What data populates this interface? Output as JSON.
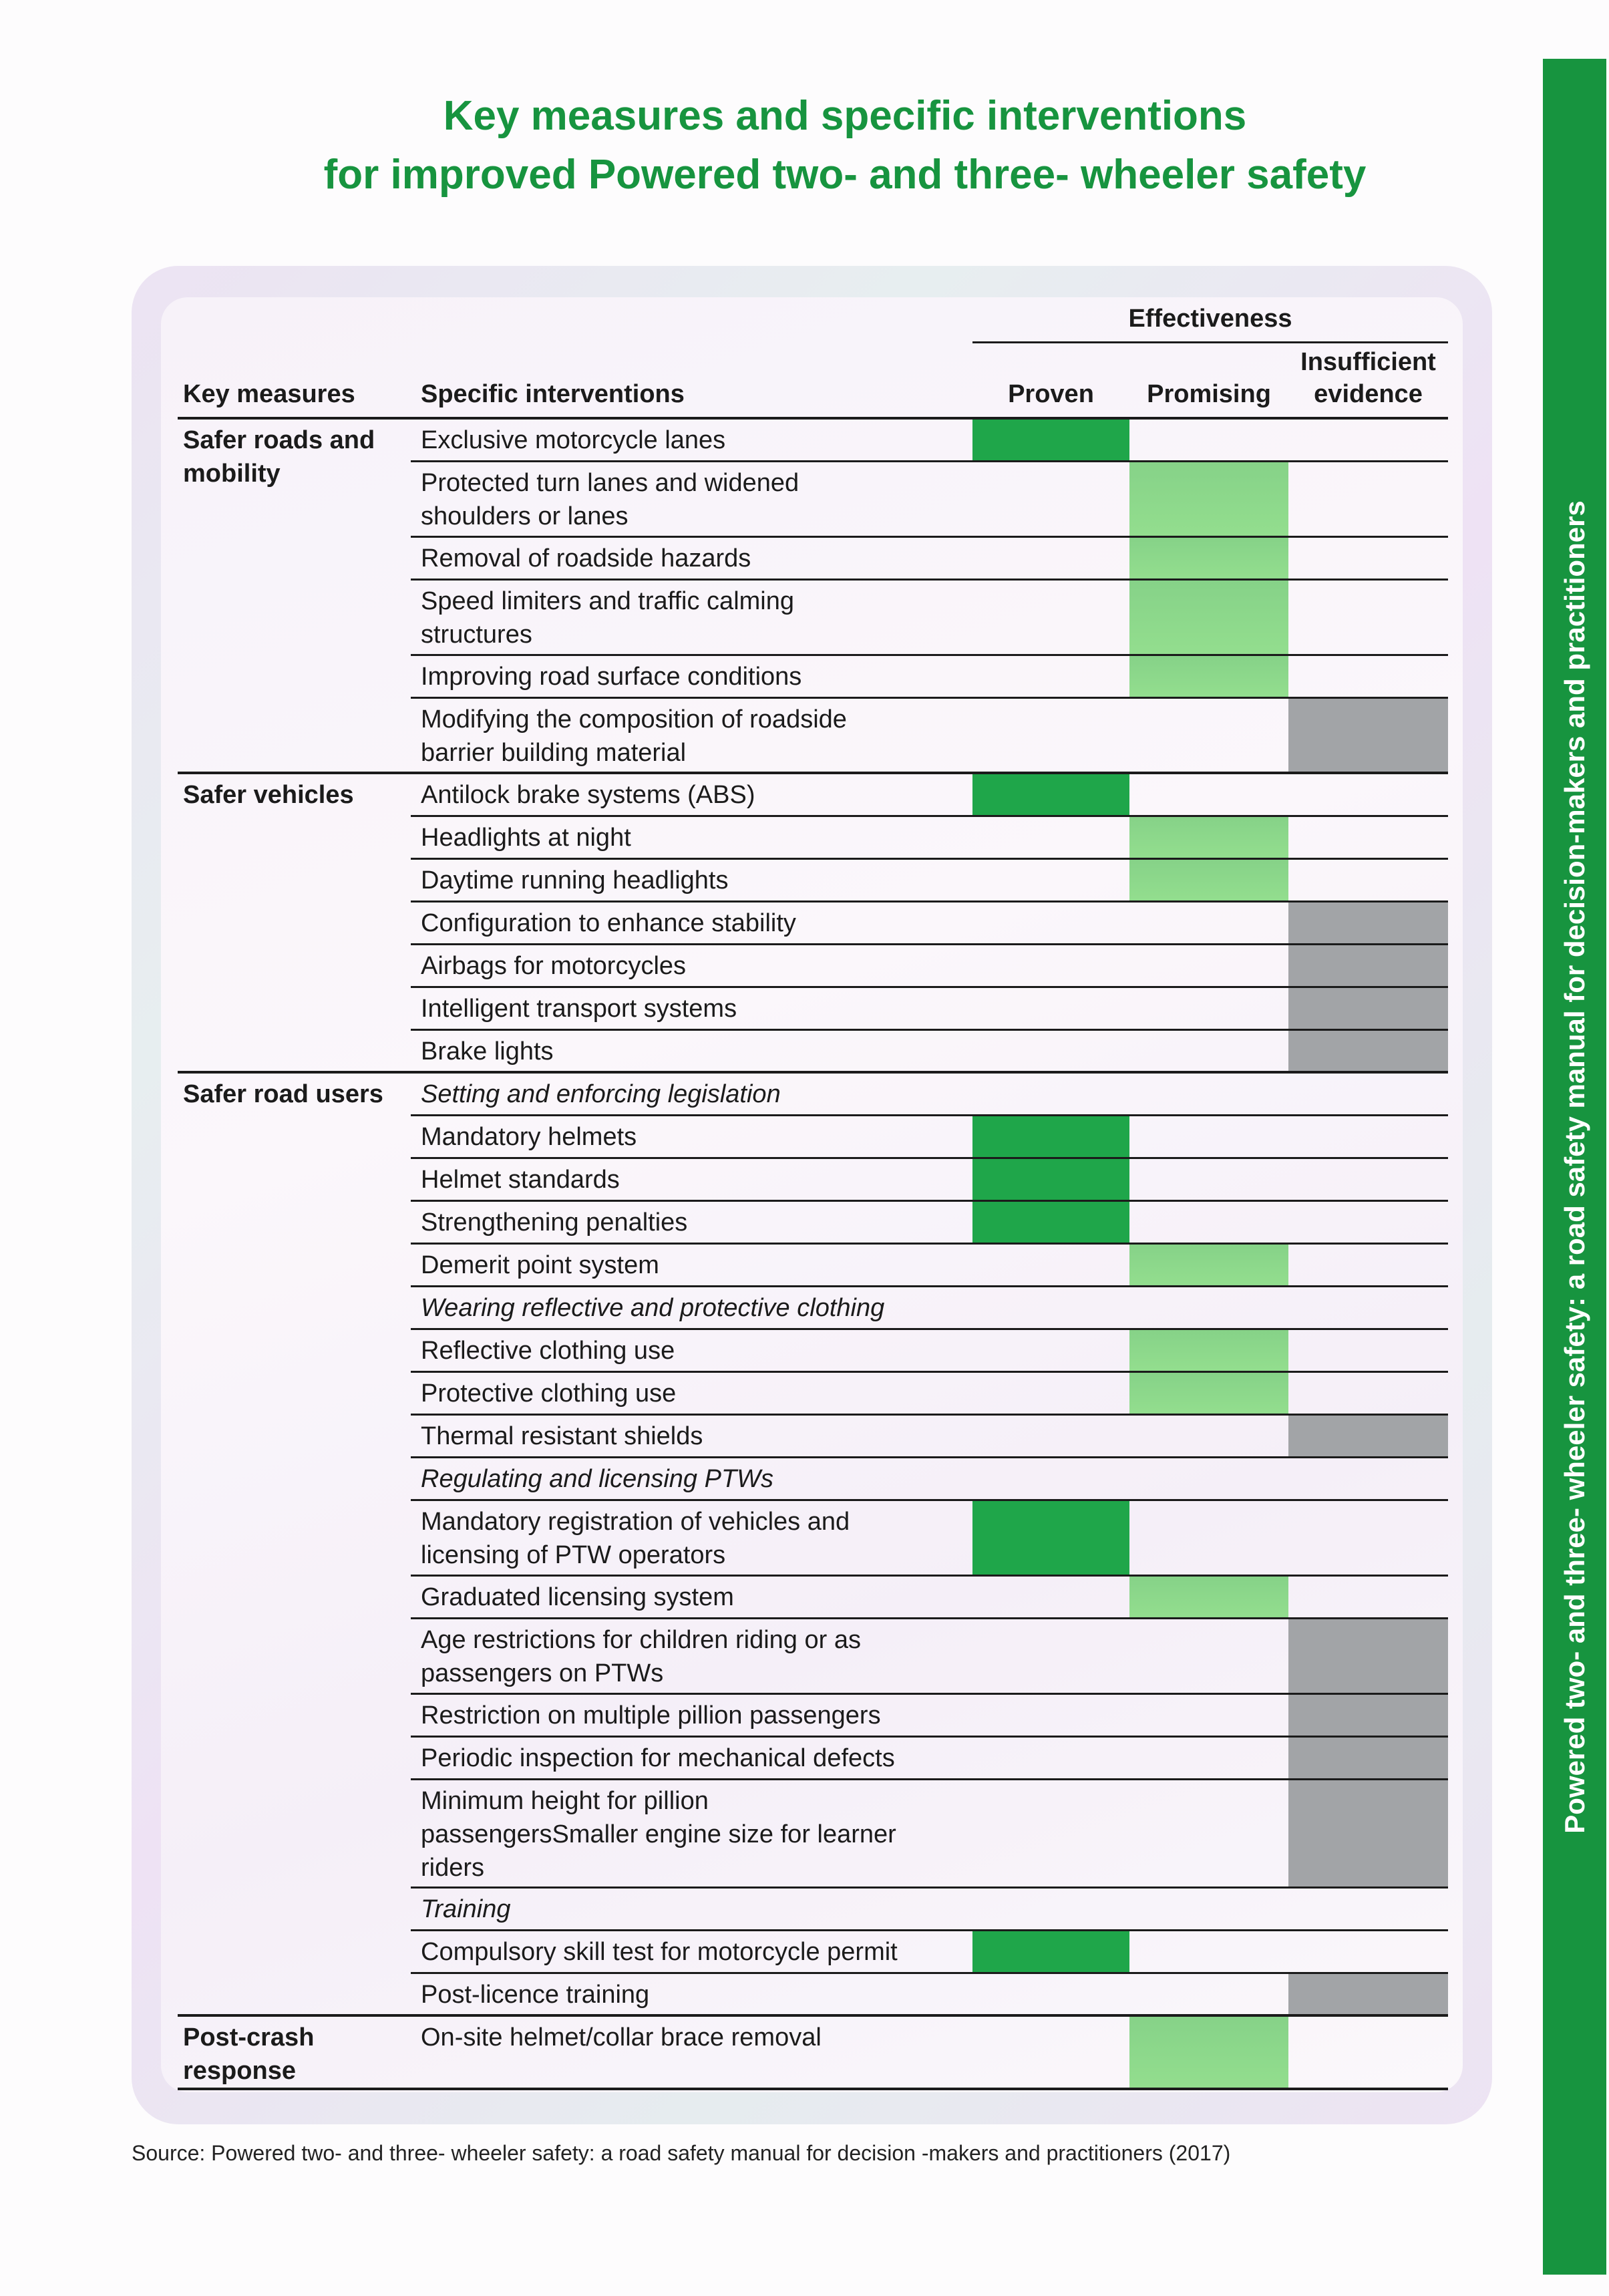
{
  "title": [
    "Key measures and specific interventions",
    "for improved Powered two- and three- wheeler safety"
  ],
  "sidebar_text": "Powered two- and three- wheeler safety: a road safety manual for decision-makers and practitioners",
  "colors": {
    "brand_green": "#17943f",
    "proven": "#1fa64a",
    "promising": "#8ed88c",
    "insufficient": "#a2a4a7"
  },
  "table": {
    "headers": {
      "key_measures": "Key measures",
      "specific_interventions": "Specific interventions",
      "effectiveness": "Effectiveness",
      "proven": "Proven",
      "promising": "Promising",
      "insufficient": [
        "Insufficient",
        "evidence"
      ]
    },
    "groups": [
      {
        "key": "Safer roads and mobility",
        "rows": [
          {
            "lines": [
              "Exclusive motorcycle lanes"
            ],
            "rating": "proven"
          },
          {
            "lines": [
              "Protected turn lanes and widened",
              "shoulders or lanes"
            ],
            "rating": "promising"
          },
          {
            "lines": [
              "Removal of roadside hazards"
            ],
            "rating": "promising"
          },
          {
            "lines": [
              "Speed limiters and traffic calming",
              "structures"
            ],
            "rating": "promising"
          },
          {
            "lines": [
              "Improving road surface conditions"
            ],
            "rating": "promising"
          },
          {
            "lines": [
              "Modifying the composition of roadside",
              "barrier building material"
            ],
            "rating": "insufficient"
          }
        ]
      },
      {
        "key": "Safer vehicles",
        "rows": [
          {
            "lines": [
              "Antilock brake systems (ABS)"
            ],
            "rating": "proven"
          },
          {
            "lines": [
              "Headlights at night"
            ],
            "rating": "promising"
          },
          {
            "lines": [
              "Daytime running headlights"
            ],
            "rating": "promising"
          },
          {
            "lines": [
              "Configuration to enhance stability"
            ],
            "rating": "insufficient"
          },
          {
            "lines": [
              "Airbags for motorcycles"
            ],
            "rating": "insufficient"
          },
          {
            "lines": [
              "Intelligent transport systems"
            ],
            "rating": "insufficient"
          },
          {
            "lines": [
              "Brake lights"
            ],
            "rating": "insufficient"
          }
        ]
      },
      {
        "key": "Safer road users",
        "rows": [
          {
            "lines": [
              "Setting and enforcing legislation"
            ],
            "rating": "",
            "subheading": true
          },
          {
            "lines": [
              "Mandatory helmets"
            ],
            "rating": "proven"
          },
          {
            "lines": [
              "Helmet standards"
            ],
            "rating": "proven"
          },
          {
            "lines": [
              "Strengthening penalties"
            ],
            "rating": "proven"
          },
          {
            "lines": [
              "Demerit point system"
            ],
            "rating": "promising"
          },
          {
            "lines": [
              "Wearing reflective and protective clothing"
            ],
            "rating": "",
            "subheading": true
          },
          {
            "lines": [
              "Reflective clothing use"
            ],
            "rating": "promising"
          },
          {
            "lines": [
              "Protective clothing use"
            ],
            "rating": "promising"
          },
          {
            "lines": [
              "Thermal resistant shields"
            ],
            "rating": "insufficient"
          },
          {
            "lines": [
              "Regulating and licensing PTWs"
            ],
            "rating": "",
            "subheading": true
          },
          {
            "lines": [
              "Mandatory registration of vehicles and",
              "licensing of PTW operators"
            ],
            "rating": "proven"
          },
          {
            "lines": [
              "Graduated licensing system"
            ],
            "rating": "promising"
          },
          {
            "lines": [
              "Age restrictions for children riding or as",
              "passengers on PTWs"
            ],
            "rating": "insufficient"
          },
          {
            "lines": [
              "Restriction on multiple pillion passengers"
            ],
            "rating": "insufficient"
          },
          {
            "lines": [
              "Periodic inspection for mechanical defects"
            ],
            "rating": "insufficient"
          },
          {
            "lines": [
              "Minimum height for pillion",
              "passengersSmaller engine size for learner",
              "riders"
            ],
            "rating": "insufficient"
          },
          {
            "lines": [
              "Training"
            ],
            "rating": "",
            "subheading": true
          },
          {
            "lines": [
              "Compulsory skill test for motorcycle permit"
            ],
            "rating": "proven"
          },
          {
            "lines": [
              "Post-licence training"
            ],
            "rating": "insufficient"
          }
        ]
      },
      {
        "key": "Post-crash response",
        "rows": [
          {
            "lines": [
              "On-site helmet/collar brace removal"
            ],
            "rating": "promising"
          }
        ]
      }
    ]
  },
  "source": "Source: Powered two- and three- wheeler safety: a road safety manual for decision -makers and practitioners (2017)"
}
